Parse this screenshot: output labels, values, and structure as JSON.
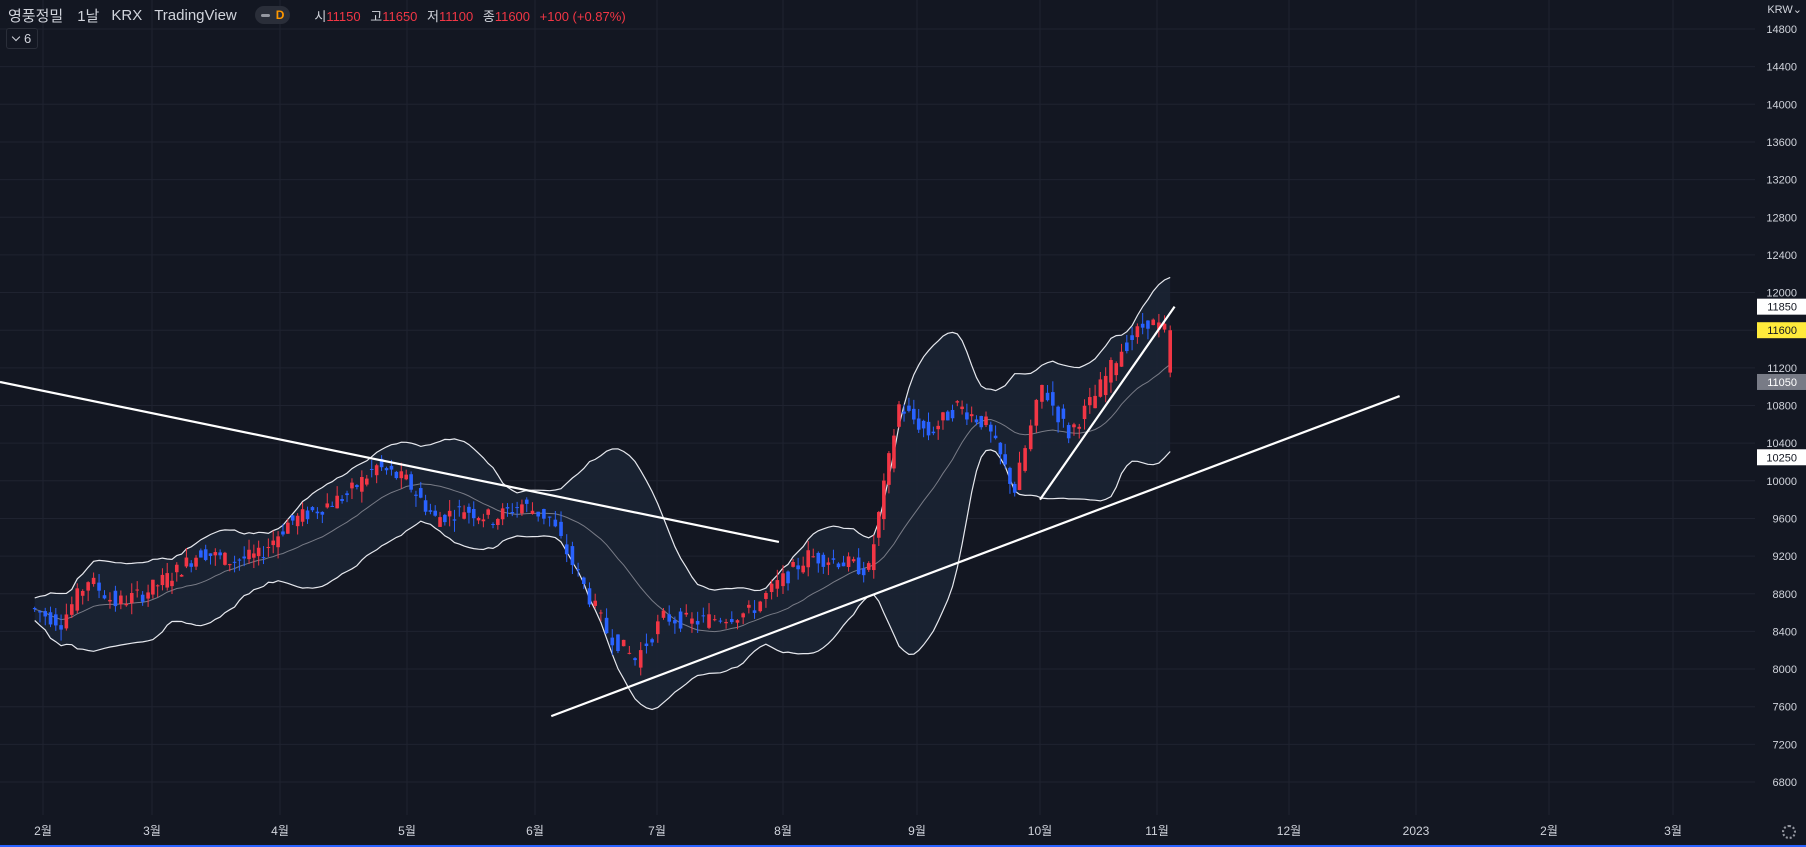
{
  "header": {
    "symbol": "영풍정밀",
    "interval": "1날",
    "exchange": "KRX",
    "provider": "TradingView",
    "market_status": "D",
    "ohlc": {
      "open_label": "시",
      "open": "11150",
      "high_label": "고",
      "high": "11650",
      "low_label": "저",
      "low": "11100",
      "close_label": "종",
      "close": "11600",
      "change": "+100 (+0.87%)"
    }
  },
  "indicator_toggle": {
    "count": "6"
  },
  "currency": "KRW",
  "colors": {
    "background": "#131722",
    "grid": "#1f2330",
    "up_candle": "#f23645",
    "down_candle": "#2962ff",
    "band_fill": "#1b2333",
    "trendline": "#ffffff",
    "axis_text": "#d1d4dc"
  },
  "chart_data": {
    "type": "candlestick",
    "x_ticks": [
      "2월",
      "3월",
      "4월",
      "5월",
      "6월",
      "7월",
      "8월",
      "9월",
      "10월",
      "11월",
      "12월",
      "2023",
      "2월",
      "3월"
    ],
    "y_ticks": [
      6800,
      7200,
      7600,
      8000,
      8400,
      8800,
      9200,
      9600,
      10000,
      10400,
      10800,
      11200,
      11600,
      12000,
      12400,
      12800,
      13200,
      13600,
      14000,
      14400,
      14800
    ],
    "ylim": [
      6600,
      14950
    ],
    "price_labels": [
      {
        "text": "11850",
        "value": 11850,
        "style": "white"
      },
      {
        "text": "11600",
        "value": 11600,
        "style": "yellow"
      },
      {
        "text": "11050",
        "value": 11050,
        "style": "gray"
      },
      {
        "text": "10250",
        "value": 10250,
        "style": "white"
      }
    ],
    "candles_approx": [
      [
        "2022-01-26",
        8800,
        8800,
        8600,
        8650
      ],
      [
        "2022-02-07",
        8650,
        8700,
        8450,
        8500
      ],
      [
        "2022-02-14",
        8550,
        9000,
        8500,
        8950
      ],
      [
        "2022-02-21",
        8950,
        9000,
        8600,
        8700
      ],
      [
        "2022-02-28",
        8700,
        8900,
        8650,
        8800
      ],
      [
        "2022-03-07",
        8800,
        9100,
        8750,
        9000
      ],
      [
        "2022-03-14",
        9000,
        9350,
        8950,
        9250
      ],
      [
        "2022-03-21",
        9250,
        9400,
        9050,
        9150
      ],
      [
        "2022-03-28",
        9150,
        9300,
        9050,
        9200
      ],
      [
        "2022-04-04",
        9200,
        9650,
        9150,
        9550
      ],
      [
        "2022-04-11",
        9550,
        9750,
        9450,
        9700
      ],
      [
        "2022-04-18",
        9700,
        9900,
        9600,
        9850
      ],
      [
        "2022-04-25",
        9850,
        10200,
        9800,
        10150
      ],
      [
        "2022-05-02",
        10150,
        10300,
        9900,
        10000
      ],
      [
        "2022-05-09",
        10000,
        10050,
        9500,
        9600
      ],
      [
        "2022-05-16",
        9600,
        9800,
        9500,
        9700
      ],
      [
        "2022-05-23",
        9700,
        9750,
        9450,
        9600
      ],
      [
        "2022-05-30",
        9600,
        9800,
        9550,
        9750
      ],
      [
        "2022-06-06",
        9750,
        9800,
        9550,
        9600
      ],
      [
        "2022-06-13",
        9600,
        9650,
        8900,
        9000
      ],
      [
        "2022-06-20",
        9000,
        9050,
        8300,
        8400
      ],
      [
        "2022-06-27",
        8400,
        8700,
        7950,
        8100
      ],
      [
        "2022-07-04",
        8100,
        8650,
        7800,
        8550
      ],
      [
        "2022-07-11",
        8550,
        8650,
        8350,
        8500
      ],
      [
        "2022-07-18",
        8500,
        8600,
        8400,
        8550
      ],
      [
        "2022-07-25",
        8550,
        8650,
        8500,
        8600
      ],
      [
        "2022-08-01",
        8600,
        8950,
        8550,
        8900
      ],
      [
        "2022-08-08",
        8900,
        10100,
        8900,
        9200
      ],
      [
        "2022-08-15",
        9200,
        9300,
        9050,
        9150
      ],
      [
        "2022-08-22",
        9150,
        9300,
        8950,
        9050
      ],
      [
        "2022-08-29",
        9050,
        11300,
        9000,
        10800
      ],
      [
        "2022-09-05",
        10800,
        11100,
        10200,
        10500
      ],
      [
        "2022-09-12",
        10500,
        11000,
        10300,
        10800
      ],
      [
        "2022-09-19",
        10800,
        11200,
        10400,
        10600
      ],
      [
        "2022-09-26",
        10600,
        10800,
        9450,
        9900
      ],
      [
        "2022-10-03",
        9900,
        11150,
        9800,
        11000
      ],
      [
        "2022-10-10",
        11000,
        11300,
        10300,
        10500
      ],
      [
        "2022-10-17",
        10500,
        11000,
        10400,
        10900
      ],
      [
        "2022-10-24",
        10900,
        11500,
        10800,
        11400
      ],
      [
        "2022-10-31",
        11400,
        12150,
        11300,
        11700
      ],
      [
        "2022-11-04",
        11150,
        11650,
        11100,
        11600
      ]
    ],
    "bollinger_bands": true,
    "trendlines": [
      {
        "from": [
          "2022-01-01",
          11050
        ],
        "to": [
          "2022-07-31",
          9350
        ]
      },
      {
        "from": [
          "2022-06-05",
          7500
        ],
        "to": [
          "2022-12-28",
          10900
        ]
      },
      {
        "from": [
          "2022-10-01",
          9800
        ],
        "to": [
          "2022-11-05",
          11850
        ]
      }
    ]
  }
}
